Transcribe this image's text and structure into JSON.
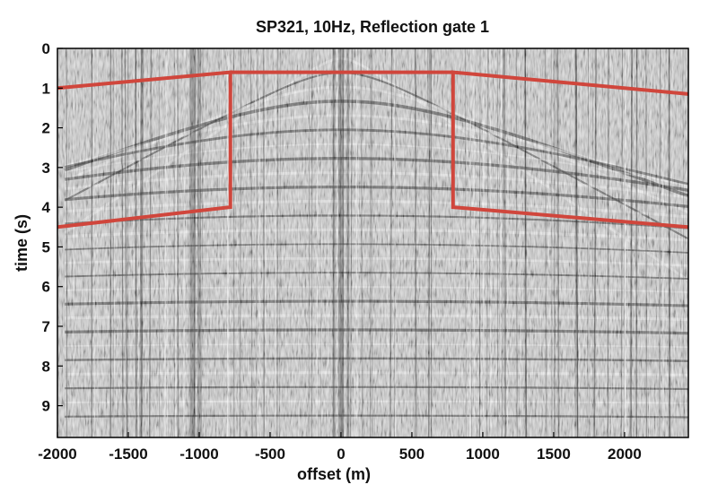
{
  "chart_data": {
    "type": "seismic-section",
    "title": "SP321, 10Hz, Reflection gate 1",
    "xlabel": "offset (m)",
    "ylabel": "time (s)",
    "xlim": [
      -2000,
      2450
    ],
    "ylim": [
      0,
      9.8
    ],
    "y_inverted": true,
    "x_ticks": [
      -2000,
      -1500,
      -1000,
      -500,
      0,
      500,
      1000,
      1500,
      2000
    ],
    "x_tick_labels": [
      "-2000",
      "-1500",
      "-1000",
      "-500",
      "0",
      "500",
      "1000",
      "1500",
      "2000"
    ],
    "y_ticks": [
      0,
      1,
      2,
      3,
      4,
      5,
      6,
      7,
      8,
      9
    ],
    "y_tick_labels": [
      "0",
      "1",
      "2",
      "3",
      "4",
      "5",
      "6",
      "7",
      "8",
      "9"
    ],
    "gate_color": "#d0463c",
    "gates": [
      {
        "name": "left",
        "polygon": [
          [
            -2000,
            1.0
          ],
          [
            -780,
            0.6
          ],
          [
            -780,
            4.0
          ],
          [
            -2000,
            4.5
          ]
        ]
      },
      {
        "name": "right",
        "polygon": [
          [
            2450,
            1.15
          ],
          [
            790,
            0.6
          ],
          [
            790,
            4.0
          ],
          [
            2450,
            4.5
          ]
        ]
      }
    ],
    "gate_top_line": [
      [
        -780,
        0.6
      ],
      [
        790,
        0.6
      ]
    ]
  }
}
